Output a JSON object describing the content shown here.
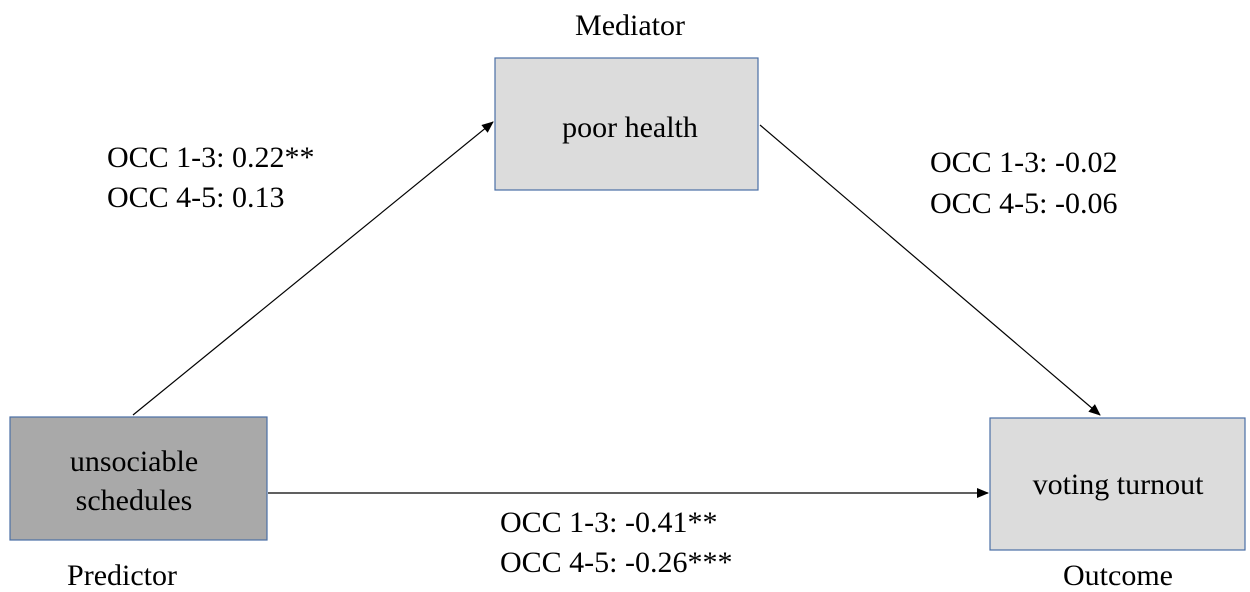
{
  "nodes": [
    {
      "role": "Mediator",
      "label": [
        "poor health"
      ]
    },
    {
      "role": "Predictor",
      "label": [
        "unsociable",
        "schedules"
      ]
    },
    {
      "role": "Outcome",
      "label": [
        "voting turnout"
      ]
    }
  ],
  "edges": [
    {
      "from": "unsociable schedules",
      "to": "poor health",
      "label": [
        "OCC 1-3: 0.22**",
        "OCC 4-5: 0.13"
      ]
    },
    {
      "from": "poor health",
      "to": "voting turnout",
      "label": [
        "OCC 1-3: -0.02",
        "OCC 4-5: -0.06"
      ]
    },
    {
      "from": "unsociable schedules",
      "to": "voting turnout",
      "label": [
        "OCC 1-3: -0.41**",
        "OCC 4-5: -0.26***"
      ]
    }
  ]
}
